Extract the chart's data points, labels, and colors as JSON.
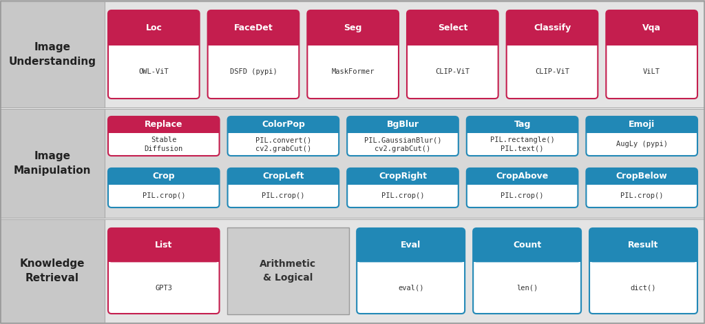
{
  "crimson": "#C41E4E",
  "teal": "#2188B6",
  "row_labels": [
    "Image\nUnderstanding",
    "Image\nManipulation",
    "Knowledge\nRetrieval"
  ],
  "row_bg": [
    "#e4e4e4",
    "#d8d8d8",
    "#e4e4e4"
  ],
  "label_bg": "#c8c8c8",
  "rows": [
    {
      "cards": [
        {
          "title": "Loc",
          "subtitle": "OWL-ViT",
          "color": "crimson"
        },
        {
          "title": "FaceDet",
          "subtitle": "DSFD (pypi)",
          "color": "crimson"
        },
        {
          "title": "Seg",
          "subtitle": "MaskFormer",
          "color": "crimson"
        },
        {
          "title": "Select",
          "subtitle": "CLIP-ViT",
          "color": "crimson"
        },
        {
          "title": "Classify",
          "subtitle": "CLIP-ViT",
          "color": "crimson"
        },
        {
          "title": "Vqa",
          "subtitle": "ViLT",
          "color": "crimson"
        }
      ]
    },
    {
      "subrows": [
        [
          {
            "title": "Replace",
            "subtitle": "Stable\nDiffusion",
            "color": "crimson"
          },
          {
            "title": "ColorPop",
            "subtitle": "PIL.convert()\ncv2.grabCut()",
            "color": "teal"
          },
          {
            "title": "BgBlur",
            "subtitle": "PIL.GaussianBlur()\ncv2.grabCut()",
            "color": "teal"
          },
          {
            "title": "Tag",
            "subtitle": "PIL.rectangle()\nPIL.text()",
            "color": "teal"
          },
          {
            "title": "Emoji",
            "subtitle": "AugLy (pypi)",
            "color": "teal"
          }
        ],
        [
          {
            "title": "Crop",
            "subtitle": "PIL.crop()",
            "color": "teal"
          },
          {
            "title": "CropLeft",
            "subtitle": "PIL.crop()",
            "color": "teal"
          },
          {
            "title": "CropRight",
            "subtitle": "PIL.crop()",
            "color": "teal"
          },
          {
            "title": "CropAbove",
            "subtitle": "PIL.crop()",
            "color": "teal"
          },
          {
            "title": "CropBelow",
            "subtitle": "PIL.crop()",
            "color": "teal"
          }
        ]
      ]
    },
    {
      "special": true,
      "list_card": {
        "title": "List",
        "subtitle": "GPT3",
        "color": "crimson"
      },
      "arith_label": "Arithmetic\n& Logical",
      "teal_cards": [
        {
          "title": "Eval",
          "subtitle": "eval()",
          "color": "teal"
        },
        {
          "title": "Count",
          "subtitle": "len()",
          "color": "teal"
        },
        {
          "title": "Result",
          "subtitle": "dict()",
          "color": "teal"
        }
      ]
    }
  ]
}
